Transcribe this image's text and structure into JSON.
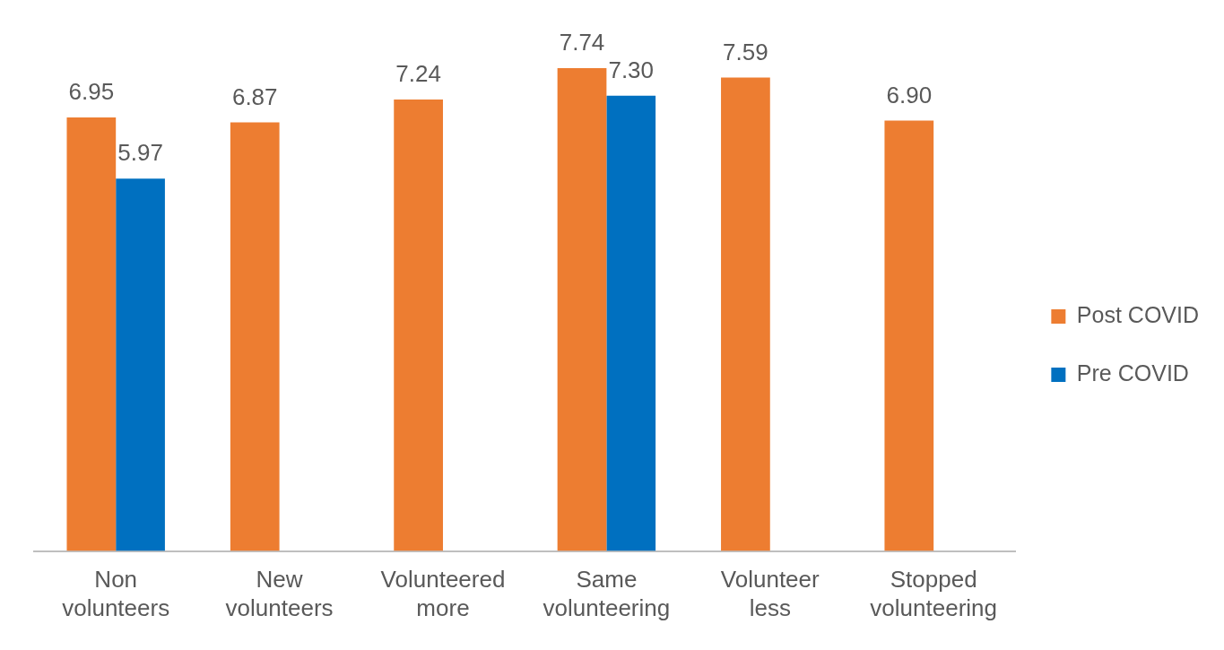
{
  "chart_data": {
    "type": "bar",
    "categories": [
      "Non volunteers",
      "New volunteers",
      "Volunteered more",
      "Same volunteering",
      "Volunteer less",
      "Stopped volunteering"
    ],
    "series": [
      {
        "name": "Post COVID",
        "color": "#ed7d31",
        "values": [
          6.95,
          6.87,
          7.24,
          7.74,
          7.59,
          6.9
        ],
        "value_labels": [
          "6.95",
          "6.87",
          "7.24",
          "7.74",
          "7.59",
          "6.90"
        ]
      },
      {
        "name": "Pre COVID",
        "color": "#0070c0",
        "values": [
          5.97,
          null,
          null,
          7.3,
          null,
          null
        ],
        "value_labels": [
          "5.97",
          null,
          null,
          "7.30",
          null,
          null
        ]
      }
    ],
    "legend": "right",
    "grid": false,
    "tick_labels": "x"
  }
}
